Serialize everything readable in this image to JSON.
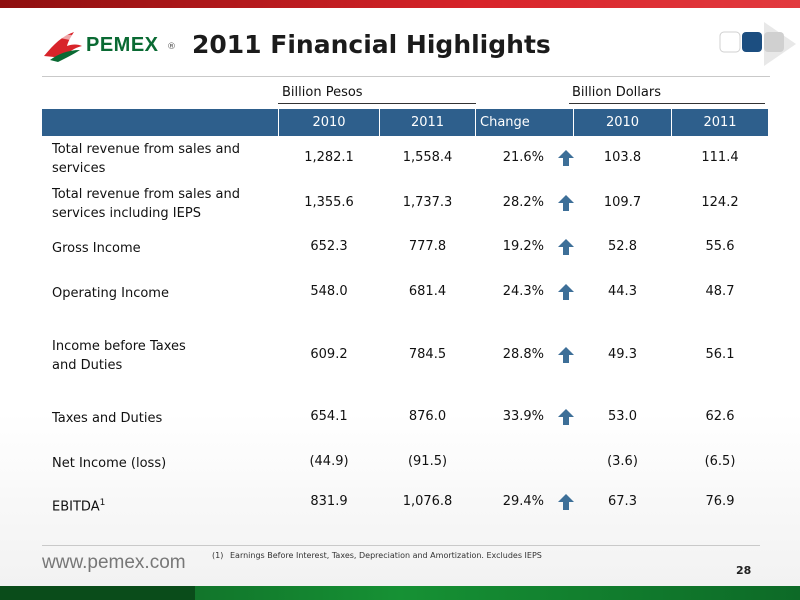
{
  "brand": {
    "logo_text": "PEMEX",
    "logo_reg": "®",
    "website": "www.pemex.com"
  },
  "slide": {
    "title": "2011 Financial Highlights",
    "page_number": "28"
  },
  "groups": {
    "pesos": "Billion Pesos",
    "dollars": "Billion Dollars"
  },
  "columns": [
    "2010",
    "2011",
    "Change",
    "2010",
    "2011"
  ],
  "rows": [
    {
      "label": "Total revenue from sales and services",
      "pesos_2010": "1,282.1",
      "pesos_2011": "1,558.4",
      "change": "21.6%",
      "up": true,
      "usd_2010": "103.8",
      "usd_2011": "111.4"
    },
    {
      "label": "Total revenue from sales and services including IEPS",
      "pesos_2010": "1,355.6",
      "pesos_2011": "1,737.3",
      "change": "28.2%",
      "up": true,
      "usd_2010": "109.7",
      "usd_2011": "124.2"
    },
    {
      "label": "Gross Income",
      "pesos_2010": "652.3",
      "pesos_2011": "777.8",
      "change": "19.2%",
      "up": true,
      "usd_2010": "52.8",
      "usd_2011": "55.6"
    },
    {
      "label": "Operating Income",
      "pesos_2010": "548.0",
      "pesos_2011": "681.4",
      "change": "24.3%",
      "up": true,
      "usd_2010": "44.3",
      "usd_2011": "48.7"
    },
    {
      "label": "Income before Taxes and Duties",
      "pesos_2010": "609.2",
      "pesos_2011": "784.5",
      "change": "28.8%",
      "up": true,
      "usd_2010": "49.3",
      "usd_2011": "56.1"
    },
    {
      "label": "Taxes and Duties",
      "pesos_2010": "654.1",
      "pesos_2011": "876.0",
      "change": "33.9%",
      "up": true,
      "usd_2010": "53.0",
      "usd_2011": "62.6"
    },
    {
      "label": "Net Income (loss)",
      "pesos_2010": "(44.9)",
      "pesos_2011": "(91.5)",
      "change": "",
      "up": false,
      "usd_2010": "(3.6)",
      "usd_2011": "(6.5)"
    },
    {
      "label": "EBITDA",
      "label_sup": "1",
      "pesos_2010": "831.9",
      "pesos_2011": "1,076.8",
      "change": "29.4%",
      "up": true,
      "usd_2010": "67.3",
      "usd_2011": "76.9"
    }
  ],
  "footnote": {
    "number": "(1)",
    "text": "Earnings Before Interest, Taxes, Depreciation and Amortization. Excludes IEPS"
  },
  "colors": {
    "header_blue": "#2e5f8c",
    "arrow_blue": "#3d6f98",
    "brand_red": "#d8242a",
    "brand_green": "#0a6a33"
  },
  "icons": {
    "up_arrow": "arrow-up-icon",
    "logo": "pemex-eagle-logo"
  }
}
